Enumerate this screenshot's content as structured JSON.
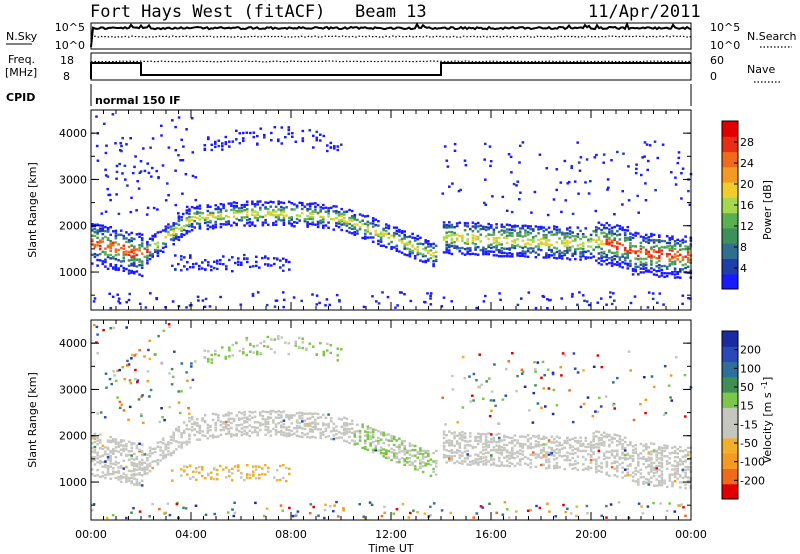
{
  "header": {
    "station": "Fort Hays West (fitACF)",
    "beam": "Beam 13",
    "date": "11/Apr/2011"
  },
  "noise_panel": {
    "left_label": "N.Sky",
    "left_ticks": [
      "10^5",
      "10^0"
    ],
    "right_ticks": [
      "10^5",
      "10^0"
    ],
    "right_label": "N.Search"
  },
  "freq_panel": {
    "left_label_1": "Freq.",
    "left_label_2": "[MHz]",
    "left_ticks": [
      "18",
      "8"
    ],
    "right_ticks": [
      "60",
      "0"
    ],
    "right_label": "Nave"
  },
  "cpid_panel": {
    "label": "CPID",
    "program": "normal 150 IF"
  },
  "colors": {
    "power_scale": [
      "#1a1aff",
      "#1f3fa8",
      "#2e6e8e",
      "#3e8f5a",
      "#58b050",
      "#a6d84e",
      "#f2cc2a",
      "#f39a22",
      "#f06a1c",
      "#e82e14",
      "#e00000"
    ],
    "velocity_scale": [
      "#1a2aa0",
      "#2a48b8",
      "#2e6e9a",
      "#3f8f55",
      "#7cc64a",
      "#c6c6c0",
      "#c6c6c0",
      "#f2b02a",
      "#f39a22",
      "#f06a1c",
      "#e00000"
    ]
  },
  "chart_data": [
    {
      "type": "heatmap",
      "ylabel": "Slant Range [km]",
      "y_ticks": [
        "4000",
        "3000",
        "2000",
        "1000"
      ],
      "ylim": [
        180,
        4500
      ],
      "xlim": [
        0,
        24
      ],
      "colorbar": {
        "label": "Power [dB]",
        "ticks": [
          "28",
          "24",
          "20",
          "16",
          "12",
          "8",
          "4"
        ],
        "range": [
          0,
          30
        ]
      }
    },
    {
      "type": "heatmap",
      "ylabel": "Slant Range [km]",
      "y_ticks": [
        "4000",
        "3000",
        "2000",
        "1000"
      ],
      "ylim": [
        180,
        4500
      ],
      "xlim": [
        0,
        24
      ],
      "colorbar": {
        "label": "Velocity [m s^-1]",
        "ticks": [
          "200",
          "100",
          "50",
          "15",
          "-15",
          "-50",
          "-100",
          "-200"
        ]
      }
    }
  ],
  "x_axis": {
    "label": "Time UT",
    "ticks": [
      "00:00",
      "04:00",
      "08:00",
      "12:00",
      "16:00",
      "20:00",
      "00:00"
    ]
  }
}
